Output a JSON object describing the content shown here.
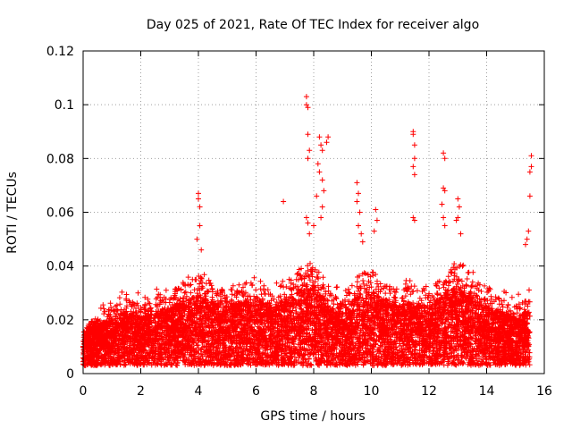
{
  "chart_data": {
    "type": "scatter",
    "title": "Day 025 of 2021, Rate Of TEC Index for receiver algo",
    "xlabel": "GPS time / hours",
    "ylabel": "ROTI / TECUs",
    "xlim": [
      0,
      16
    ],
    "ylim": [
      0,
      0.12
    ],
    "xticks": [
      0,
      2,
      4,
      6,
      8,
      10,
      12,
      14,
      16
    ],
    "yticks": [
      0,
      0.02,
      0.04,
      0.06,
      0.08,
      0.1,
      0.12
    ],
    "xtick_labels": [
      "0",
      "2",
      "4",
      "6",
      "8",
      "10",
      "12",
      "14",
      "16"
    ],
    "ytick_labels": [
      "0",
      "0.02",
      "0.04",
      "0.06",
      "0.08",
      "0.1",
      "0.12"
    ],
    "grid": true,
    "marker": "+",
    "color": "#ff0000",
    "data_extent_x": [
      0,
      15.5
    ],
    "envelope": {
      "x": [
        0.0,
        0.5,
        1.0,
        1.5,
        2.0,
        2.5,
        3.0,
        3.5,
        4.0,
        4.5,
        5.0,
        5.5,
        6.0,
        6.5,
        7.0,
        7.5,
        8.0,
        8.5,
        9.0,
        9.5,
        10.0,
        10.5,
        11.0,
        11.5,
        12.0,
        12.5,
        13.0,
        13.5,
        14.0,
        14.5,
        15.0,
        15.5
      ],
      "base": [
        0.012,
        0.015,
        0.018,
        0.02,
        0.018,
        0.02,
        0.022,
        0.024,
        0.026,
        0.024,
        0.022,
        0.024,
        0.025,
        0.022,
        0.024,
        0.028,
        0.03,
        0.022,
        0.02,
        0.026,
        0.028,
        0.024,
        0.022,
        0.024,
        0.022,
        0.026,
        0.03,
        0.026,
        0.022,
        0.02,
        0.018,
        0.02
      ],
      "max": [
        0.015,
        0.025,
        0.027,
        0.038,
        0.034,
        0.033,
        0.041,
        0.035,
        0.067,
        0.03,
        0.032,
        0.034,
        0.04,
        0.035,
        0.064,
        0.06,
        0.103,
        0.088,
        0.04,
        0.071,
        0.061,
        0.04,
        0.04,
        0.09,
        0.045,
        0.082,
        0.065,
        0.04,
        0.041,
        0.039,
        0.04,
        0.081
      ]
    },
    "spikes": [
      {
        "x": 4.0,
        "y": 0.067
      },
      {
        "x": 4.0,
        "y": 0.065
      },
      {
        "x": 4.05,
        "y": 0.062
      },
      {
        "x": 4.05,
        "y": 0.055
      },
      {
        "x": 3.95,
        "y": 0.05
      },
      {
        "x": 4.1,
        "y": 0.046
      },
      {
        "x": 7.75,
        "y": 0.103
      },
      {
        "x": 7.75,
        "y": 0.1
      },
      {
        "x": 7.8,
        "y": 0.099
      },
      {
        "x": 7.8,
        "y": 0.089
      },
      {
        "x": 7.85,
        "y": 0.083
      },
      {
        "x": 7.8,
        "y": 0.08
      },
      {
        "x": 7.75,
        "y": 0.058
      },
      {
        "x": 7.8,
        "y": 0.056
      },
      {
        "x": 7.85,
        "y": 0.052
      },
      {
        "x": 6.95,
        "y": 0.064
      },
      {
        "x": 8.2,
        "y": 0.088
      },
      {
        "x": 8.25,
        "y": 0.085
      },
      {
        "x": 8.3,
        "y": 0.083
      },
      {
        "x": 8.5,
        "y": 0.088
      },
      {
        "x": 8.45,
        "y": 0.086
      },
      {
        "x": 8.15,
        "y": 0.078
      },
      {
        "x": 8.2,
        "y": 0.075
      },
      {
        "x": 8.3,
        "y": 0.072
      },
      {
        "x": 8.35,
        "y": 0.068
      },
      {
        "x": 8.1,
        "y": 0.066
      },
      {
        "x": 8.3,
        "y": 0.062
      },
      {
        "x": 8.25,
        "y": 0.058
      },
      {
        "x": 8.0,
        "y": 0.055
      },
      {
        "x": 9.5,
        "y": 0.071
      },
      {
        "x": 9.55,
        "y": 0.067
      },
      {
        "x": 9.5,
        "y": 0.064
      },
      {
        "x": 9.6,
        "y": 0.06
      },
      {
        "x": 9.55,
        "y": 0.055
      },
      {
        "x": 9.65,
        "y": 0.052
      },
      {
        "x": 9.7,
        "y": 0.049
      },
      {
        "x": 10.15,
        "y": 0.061
      },
      {
        "x": 10.2,
        "y": 0.057
      },
      {
        "x": 10.1,
        "y": 0.053
      },
      {
        "x": 11.45,
        "y": 0.09
      },
      {
        "x": 11.45,
        "y": 0.089
      },
      {
        "x": 11.5,
        "y": 0.085
      },
      {
        "x": 11.5,
        "y": 0.08
      },
      {
        "x": 11.45,
        "y": 0.077
      },
      {
        "x": 11.5,
        "y": 0.074
      },
      {
        "x": 11.45,
        "y": 0.058
      },
      {
        "x": 11.5,
        "y": 0.057
      },
      {
        "x": 12.5,
        "y": 0.082
      },
      {
        "x": 12.55,
        "y": 0.08
      },
      {
        "x": 12.5,
        "y": 0.069
      },
      {
        "x": 12.55,
        "y": 0.068
      },
      {
        "x": 12.45,
        "y": 0.063
      },
      {
        "x": 12.5,
        "y": 0.058
      },
      {
        "x": 12.55,
        "y": 0.055
      },
      {
        "x": 13.0,
        "y": 0.065
      },
      {
        "x": 13.05,
        "y": 0.062
      },
      {
        "x": 13.0,
        "y": 0.058
      },
      {
        "x": 12.95,
        "y": 0.057
      },
      {
        "x": 13.1,
        "y": 0.052
      },
      {
        "x": 15.55,
        "y": 0.081
      },
      {
        "x": 15.55,
        "y": 0.077
      },
      {
        "x": 15.5,
        "y": 0.075
      },
      {
        "x": 15.5,
        "y": 0.066
      },
      {
        "x": 15.45,
        "y": 0.053
      },
      {
        "x": 15.4,
        "y": 0.05
      },
      {
        "x": 15.35,
        "y": 0.048
      }
    ]
  }
}
